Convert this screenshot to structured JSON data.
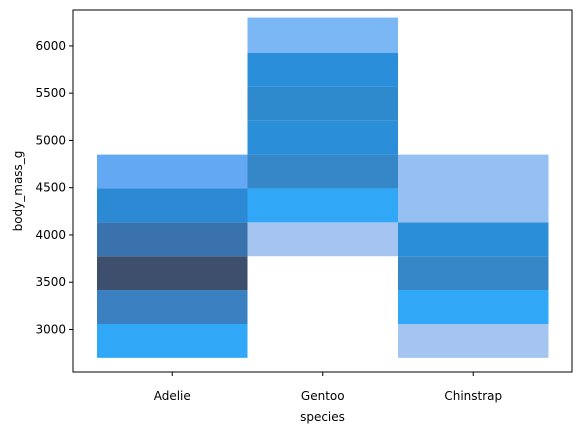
{
  "chart_data": {
    "type": "heatmap",
    "title": "",
    "xlabel": "species",
    "ylabel": "body_mass_g",
    "categories": [
      "Adelie",
      "Gentoo",
      "Chinstrap"
    ],
    "ylim": [
      2550,
      6380
    ],
    "yticks": [
      3000,
      3500,
      4000,
      4500,
      5000,
      5500,
      6000
    ],
    "grid": false,
    "bins": [
      {
        "category": "Adelie",
        "y0": 2700,
        "y1": 3058,
        "color": "#31a7f7"
      },
      {
        "category": "Adelie",
        "y0": 3058,
        "y1": 3417,
        "color": "#3a7fbf"
      },
      {
        "category": "Adelie",
        "y0": 3417,
        "y1": 3775,
        "color": "#3d4f6c"
      },
      {
        "category": "Adelie",
        "y0": 3775,
        "y1": 4133,
        "color": "#3a72ae"
      },
      {
        "category": "Adelie",
        "y0": 4133,
        "y1": 4492,
        "color": "#2b8ad3"
      },
      {
        "category": "Adelie",
        "y0": 4492,
        "y1": 4850,
        "color": "#62a8f2"
      },
      {
        "category": "Gentoo",
        "y0": 3775,
        "y1": 4133,
        "color": "#a5c4f0"
      },
      {
        "category": "Gentoo",
        "y0": 4133,
        "y1": 4492,
        "color": "#31a7f7"
      },
      {
        "category": "Gentoo",
        "y0": 4492,
        "y1": 4850,
        "color": "#3587c8"
      },
      {
        "category": "Gentoo",
        "y0": 4850,
        "y1": 5208,
        "color": "#2b8ed9"
      },
      {
        "category": "Gentoo",
        "y0": 5208,
        "y1": 5567,
        "color": "#2f89cd"
      },
      {
        "category": "Gentoo",
        "y0": 5567,
        "y1": 5925,
        "color": "#2a8edb"
      },
      {
        "category": "Gentoo",
        "y0": 5925,
        "y1": 6300,
        "color": "#7ab7f4"
      },
      {
        "category": "Chinstrap",
        "y0": 2700,
        "y1": 3058,
        "color": "#a5c4f0"
      },
      {
        "category": "Chinstrap",
        "y0": 3058,
        "y1": 3417,
        "color": "#31a7f7"
      },
      {
        "category": "Chinstrap",
        "y0": 3417,
        "y1": 3775,
        "color": "#3587c8"
      },
      {
        "category": "Chinstrap",
        "y0": 3775,
        "y1": 4133,
        "color": "#2b8ed9"
      },
      {
        "category": "Chinstrap",
        "y0": 4133,
        "y1": 4850,
        "color": "#96c0f2"
      }
    ]
  }
}
